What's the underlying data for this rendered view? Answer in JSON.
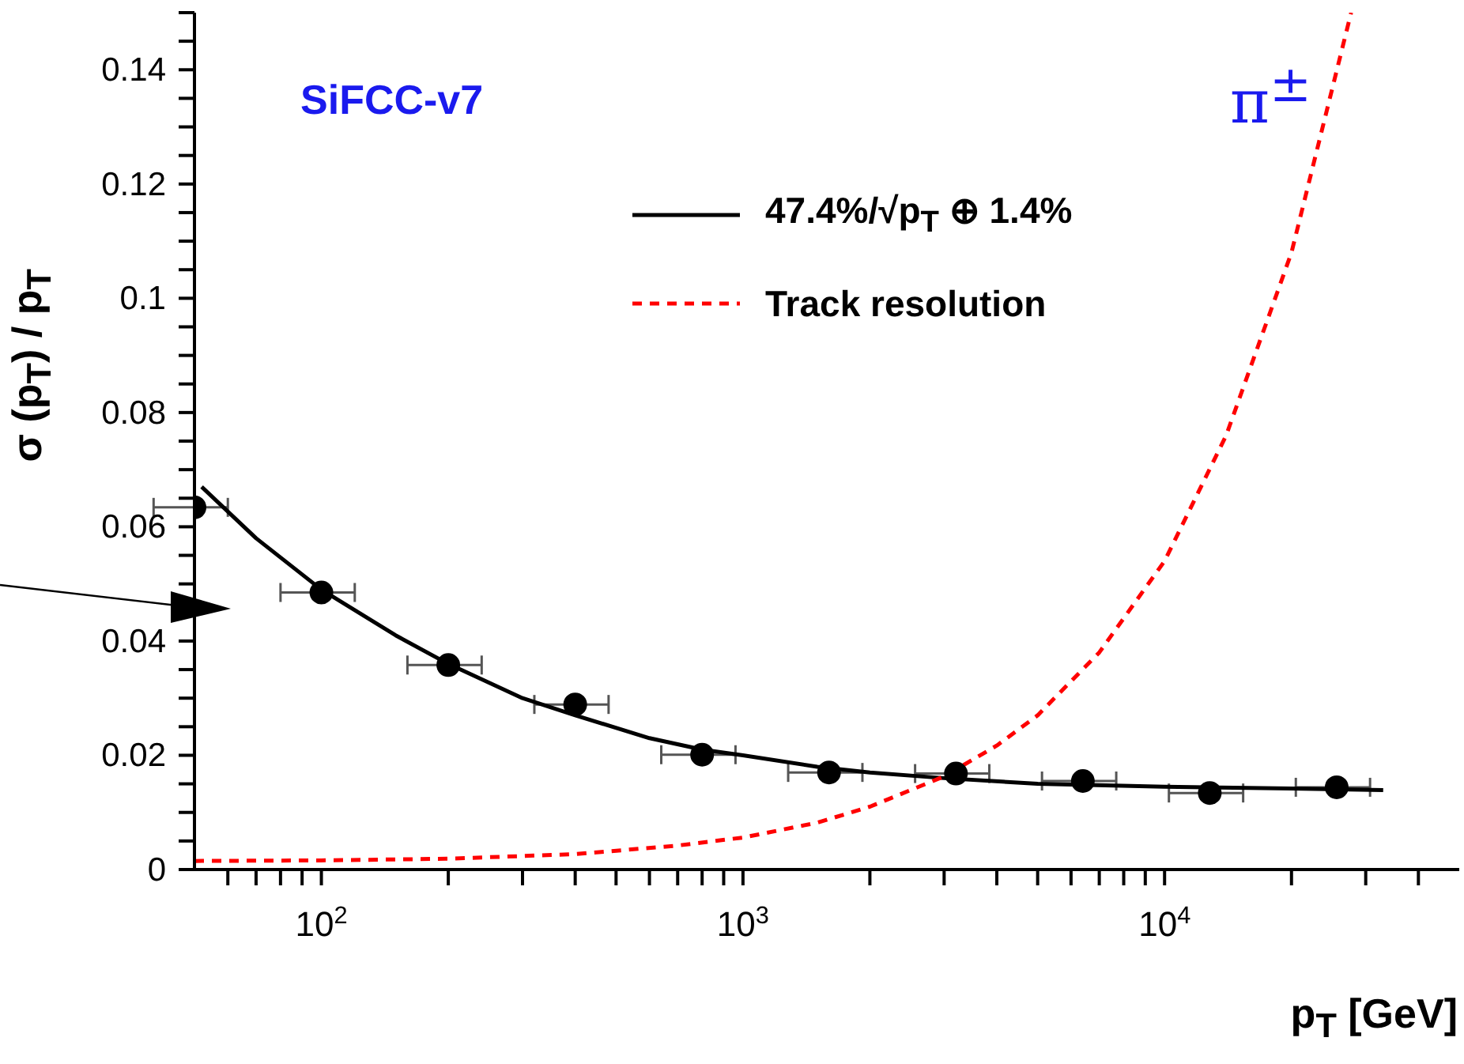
{
  "chart_data": {
    "type": "scatter",
    "xlabel": "p$_{T}$ [GeV]",
    "ylabel": "σ (p$_{T}$) / p$_{T}$",
    "annotations": [
      "SiFCC-v7",
      "π$^{±}$"
    ],
    "log": "x",
    "legend": "top",
    "xlim": [
      50,
      50000
    ],
    "xticks": [
      {
        "value": 60,
        "label": null
      },
      {
        "value": 70,
        "label": null
      },
      {
        "value": 80,
        "label": null
      },
      {
        "value": 90,
        "label": null
      },
      {
        "value": 100,
        "label": "10$^{2}$"
      },
      {
        "value": 200,
        "label": null
      },
      {
        "value": 300,
        "label": null
      },
      {
        "value": 400,
        "label": null
      },
      {
        "value": 500,
        "label": null
      },
      {
        "value": 600,
        "label": null
      },
      {
        "value": 700,
        "label": null
      },
      {
        "value": 800,
        "label": null
      },
      {
        "value": 900,
        "label": null
      },
      {
        "value": 1000,
        "label": "10$^{3}$"
      },
      {
        "value": 2000,
        "label": null
      },
      {
        "value": 3000,
        "label": null
      },
      {
        "value": 4000,
        "label": null
      },
      {
        "value": 5000,
        "label": null
      },
      {
        "value": 6000,
        "label": null
      },
      {
        "value": 7000,
        "label": null
      },
      {
        "value": 8000,
        "label": null
      },
      {
        "value": 9000,
        "label": null
      },
      {
        "value": 10000,
        "label": "10$^{4}$"
      },
      {
        "value": 20000,
        "label": null
      },
      {
        "value": 30000,
        "label": null
      },
      {
        "value": 40000,
        "label": null
      }
    ],
    "ylim": [
      0,
      0.15
    ],
    "yticks": [
      0,
      {
        "value": 0.005,
        "label": null
      },
      0.02,
      {
        "value": 0.01,
        "label": null
      },
      {
        "value": 0.015,
        "label": null
      },
      {
        "value": 0.025,
        "label": null
      },
      {
        "value": 0.03,
        "label": null
      },
      {
        "value": 0.035,
        "label": null
      },
      0.04,
      {
        "value": 0.045,
        "label": null
      },
      {
        "value": 0.05,
        "label": null
      },
      {
        "value": 0.055,
        "label": null
      },
      0.06,
      {
        "value": 0.065,
        "label": null
      },
      {
        "value": 0.07,
        "label": null
      },
      {
        "value": 0.075,
        "label": null
      },
      0.08,
      {
        "value": 0.085,
        "label": null
      },
      {
        "value": 0.09,
        "label": null
      },
      {
        "value": 0.095,
        "label": null
      },
      0.1,
      {
        "value": 0.105,
        "label": null
      },
      {
        "value": 0.11,
        "label": null
      },
      {
        "value": 0.115,
        "label": null
      },
      0.12,
      {
        "value": 0.125,
        "label": null
      },
      {
        "value": 0.13,
        "label": null
      },
      {
        "value": 0.135,
        "label": null
      },
      0.14,
      {
        "value": 0.145,
        "label": null
      },
      {
        "value": 0.15,
        "label": null
      }
    ],
    "series": [
      {
        "marker": "circle",
        "color": "#000000",
        "x": [
          50,
          100,
          200,
          400,
          800,
          1600,
          3200,
          6400,
          12800,
          25600
        ],
        "values": [
          0.0634,
          0.0485,
          0.0358,
          0.0289,
          0.0201,
          0.017,
          0.0168,
          0.0155,
          0.0134,
          0.0144
        ],
        "xerrors": [
          10,
          20,
          40,
          80,
          160,
          320,
          640,
          1280,
          2560,
          5120
        ]
      },
      {
        "type": "line",
        "name": "47.4%/√p$_{T}$ ⊕ 1.4%",
        "color": "#000000",
        "line_style": "solid",
        "marker": "none",
        "x": [
          52,
          70,
          100,
          150,
          200,
          300,
          400,
          600,
          800,
          1000,
          1500,
          2000,
          3000,
          5000,
          10000,
          20000,
          33000
        ],
        "values": [
          0.067,
          0.058,
          0.049,
          0.041,
          0.036,
          0.03,
          0.027,
          0.023,
          0.021,
          0.02,
          0.018,
          0.017,
          0.016,
          0.015,
          0.0145,
          0.0142,
          0.0139
        ]
      },
      {
        "type": "line",
        "name": "Track resolution",
        "color": "#ff0000",
        "line_style": "dashed",
        "marker": "none",
        "x": [
          50,
          100,
          200,
          400,
          700,
          1000,
          1500,
          2000,
          3000,
          4000,
          5000,
          7000,
          10000,
          14000,
          20000,
          27700
        ],
        "values": [
          0.0015,
          0.0016,
          0.0019,
          0.0027,
          0.0042,
          0.0056,
          0.0082,
          0.011,
          0.0163,
          0.0217,
          0.027,
          0.038,
          0.054,
          0.076,
          0.108,
          0.15
        ]
      }
    ]
  }
}
